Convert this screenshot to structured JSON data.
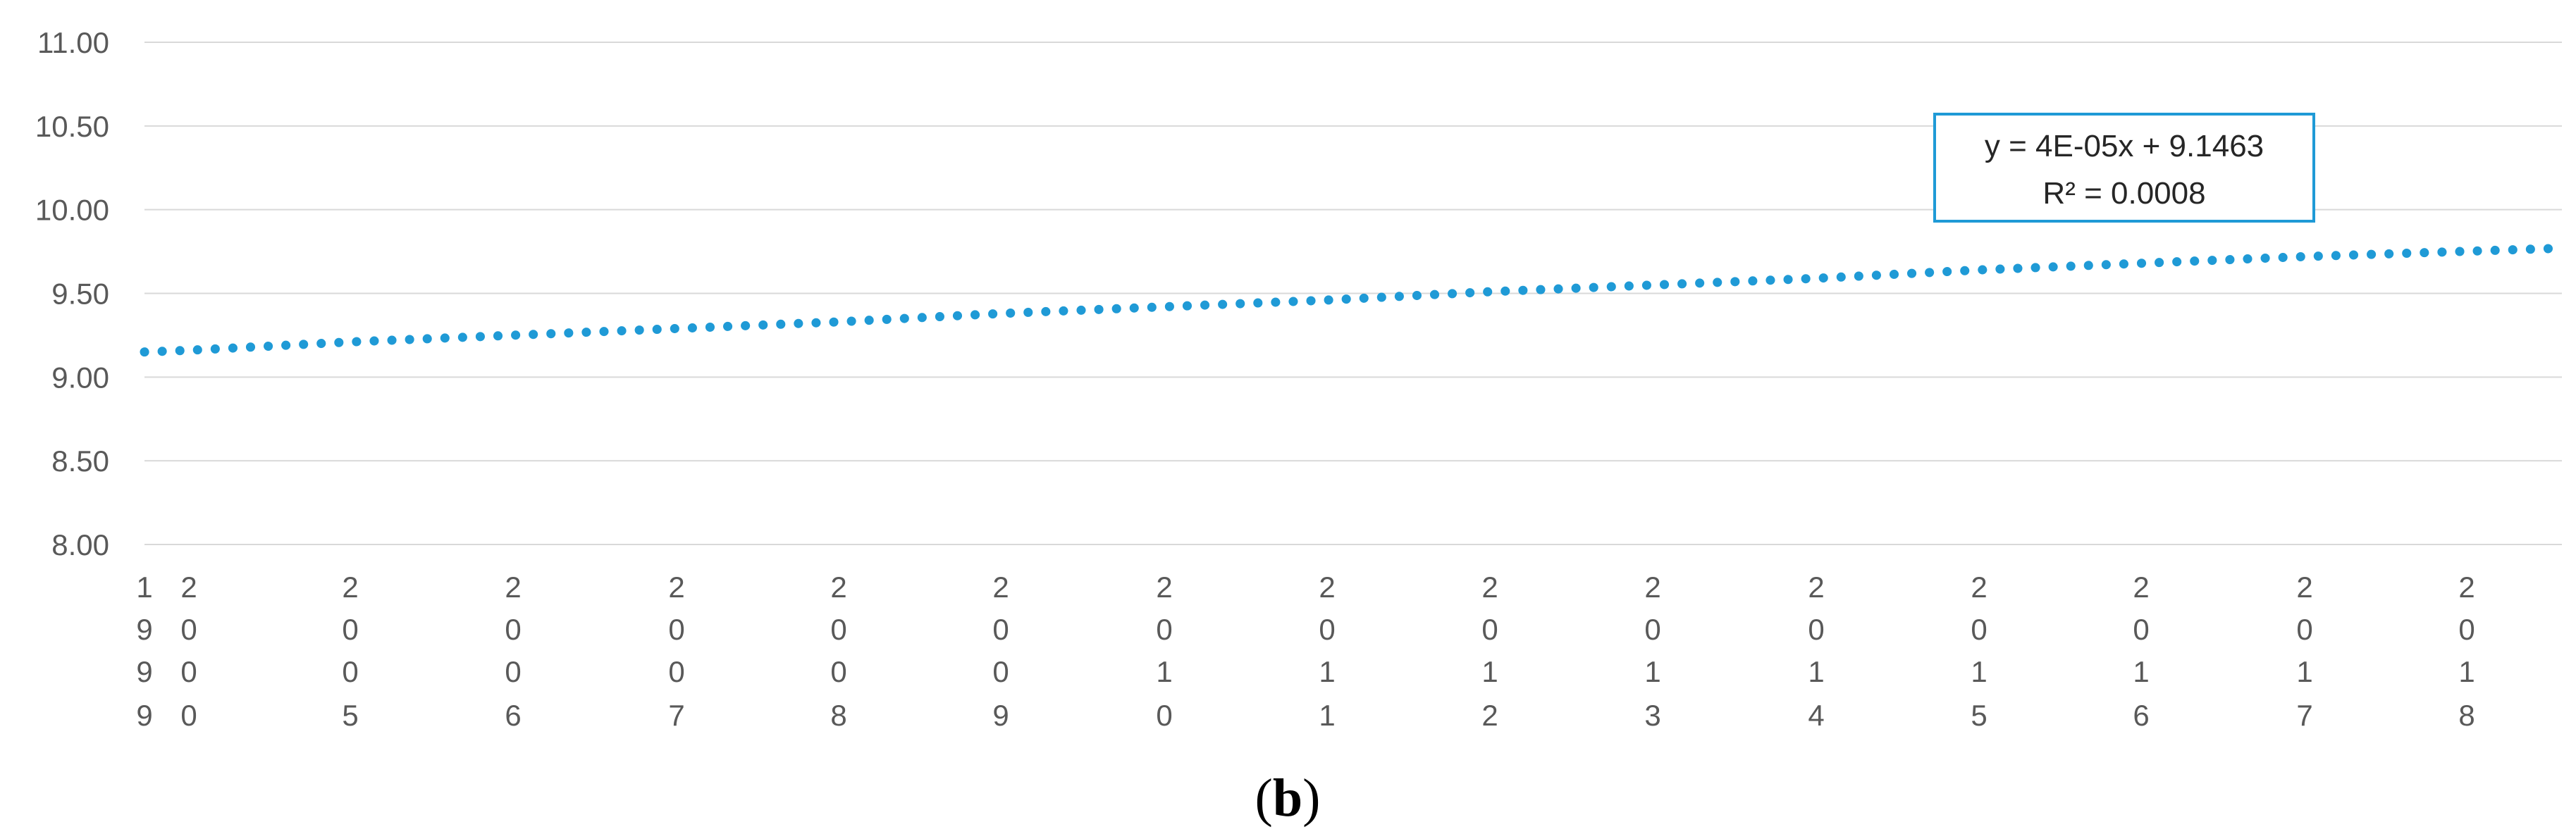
{
  "chart_data": {
    "type": "line",
    "title": "",
    "xlabel": "",
    "ylabel": "",
    "ylim": [
      8.0,
      11.0
    ],
    "yticks": [
      "11.00",
      "10.50",
      "10.00",
      "9.50",
      "9.00",
      "8.50",
      "8.00"
    ],
    "xticks": [
      "1999",
      "2000",
      "2005",
      "2006",
      "2007",
      "2008",
      "2009",
      "2010",
      "2011",
      "2012",
      "2013",
      "2014",
      "2015",
      "2016",
      "2017",
      "2018"
    ],
    "grid": true,
    "series": [
      {
        "style": "dotted",
        "color": "#1f9ad6",
        "x": [
          1999,
          2000,
          2005,
          2006,
          2007,
          2008,
          2009,
          2010,
          2011,
          2012,
          2013,
          2014,
          2015,
          2016,
          2017,
          2018
        ],
        "values": [
          9.15,
          9.16,
          9.21,
          9.25,
          9.29,
          9.33,
          9.38,
          9.42,
          9.46,
          9.51,
          9.55,
          9.59,
          9.64,
          9.68,
          9.72,
          9.77
        ]
      }
    ],
    "trendline_label": {
      "equation": "y = 4E-05x + 9.1463",
      "r_squared": "R² = 0.0008"
    }
  },
  "caption": {
    "open": "(",
    "letter": "b",
    "close": ")"
  }
}
